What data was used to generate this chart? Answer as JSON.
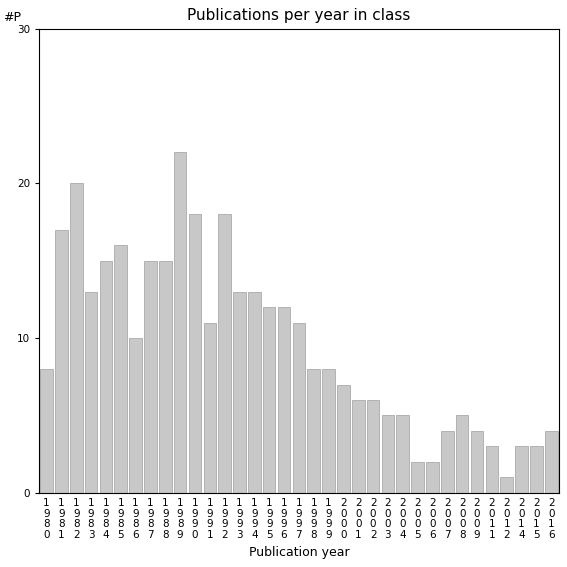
{
  "title": "Publications per year in class",
  "xlabel": "Publication year",
  "ylabel_label": "#P",
  "years": [
    "1980",
    "1981",
    "1982",
    "1983",
    "1984",
    "1985",
    "1986",
    "1987",
    "1988",
    "1989",
    "1990",
    "1991",
    "1992",
    "1993",
    "1994",
    "1995",
    "1996",
    "1997",
    "1998",
    "1999",
    "2000",
    "2001",
    "2002",
    "2003",
    "2004",
    "2005",
    "2006",
    "2007",
    "2008",
    "2009",
    "2011",
    "2012",
    "2014",
    "2015",
    "2016"
  ],
  "values": [
    8,
    17,
    20,
    13,
    15,
    16,
    10,
    15,
    15,
    22,
    18,
    11,
    18,
    13,
    13,
    12,
    12,
    11,
    8,
    8,
    7,
    6,
    6,
    5,
    5,
    2,
    2,
    4,
    5,
    4,
    3,
    1,
    3,
    3,
    4
  ],
  "bar_color": "#c8c8c8",
  "bar_edgecolor": "#aaaaaa",
  "ylim": [
    0,
    30
  ],
  "yticks": [
    0,
    10,
    20,
    30
  ],
  "background_color": "#ffffff",
  "title_fontsize": 11,
  "axis_fontsize": 9,
  "tick_fontsize": 7.5
}
